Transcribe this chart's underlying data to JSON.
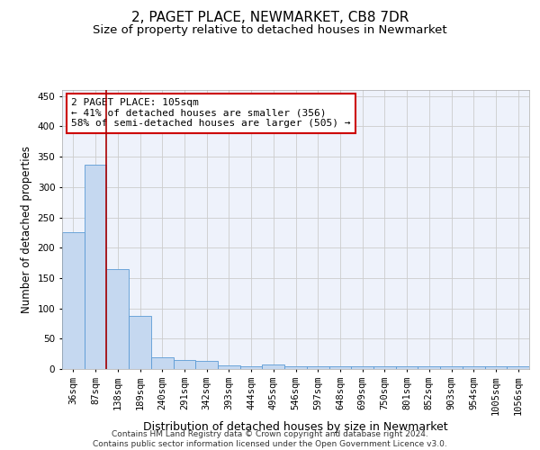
{
  "title": "2, PAGET PLACE, NEWMARKET, CB8 7DR",
  "subtitle": "Size of property relative to detached houses in Newmarket",
  "xlabel": "Distribution of detached houses by size in Newmarket",
  "ylabel": "Number of detached properties",
  "bar_labels": [
    "36sqm",
    "87sqm",
    "138sqm",
    "189sqm",
    "240sqm",
    "291sqm",
    "342sqm",
    "393sqm",
    "444sqm",
    "495sqm",
    "546sqm",
    "597sqm",
    "648sqm",
    "699sqm",
    "750sqm",
    "801sqm",
    "852sqm",
    "903sqm",
    "954sqm",
    "1005sqm",
    "1056sqm"
  ],
  "bar_values": [
    225,
    337,
    165,
    88,
    20,
    15,
    13,
    6,
    5,
    7,
    4,
    4,
    4,
    4,
    4,
    4,
    4,
    4,
    4,
    4,
    4
  ],
  "bar_color": "#c5d8f0",
  "bar_edge_color": "#5b9bd5",
  "grid_color": "#cccccc",
  "bg_color": "#eef2fb",
  "red_line_x": 1.5,
  "red_line_color": "#aa0000",
  "annotation_text": "2 PAGET PLACE: 105sqm\n← 41% of detached houses are smaller (356)\n58% of semi-detached houses are larger (505) →",
  "annotation_box_color": "#ffffff",
  "annotation_box_edge": "#cc0000",
  "ylim": [
    0,
    460
  ],
  "yticks": [
    0,
    50,
    100,
    150,
    200,
    250,
    300,
    350,
    400,
    450
  ],
  "footer": "Contains HM Land Registry data © Crown copyright and database right 2024.\nContains public sector information licensed under the Open Government Licence v3.0.",
  "title_fontsize": 11,
  "subtitle_fontsize": 9.5,
  "xlabel_fontsize": 9,
  "ylabel_fontsize": 8.5,
  "tick_fontsize": 7.5,
  "annotation_fontsize": 8,
  "footer_fontsize": 6.5
}
